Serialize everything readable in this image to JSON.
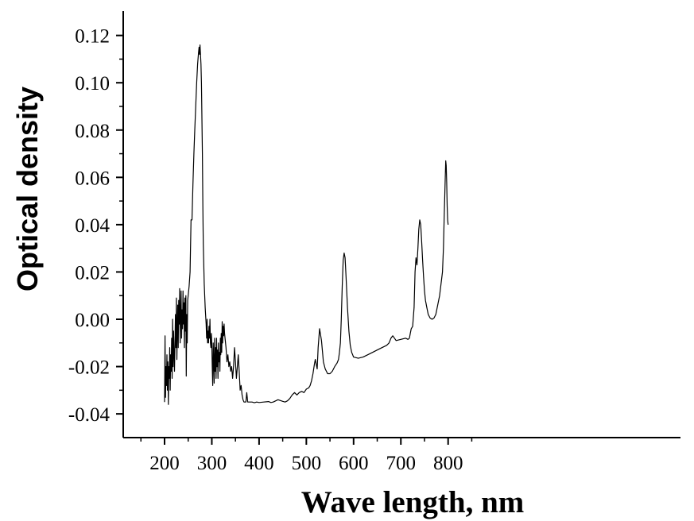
{
  "chart_data": {
    "type": "line",
    "title": "",
    "xlabel": "Wave length, nm",
    "ylabel": "Optical density",
    "xlim": [
      150,
      850
    ],
    "ylim": [
      -0.05,
      0.13
    ],
    "x_ticks": [
      200,
      300,
      400,
      500,
      600,
      700,
      800
    ],
    "x_tick_labels": [
      "200",
      "300",
      "400",
      "500",
      "600",
      "700",
      "800"
    ],
    "y_ticks": [
      -0.04,
      -0.02,
      0.0,
      0.02,
      0.04,
      0.06,
      0.08,
      0.1,
      0.12
    ],
    "y_tick_labels": [
      "-0.04",
      "-0.02",
      "0.00",
      "0.02",
      "0.04",
      "0.06",
      "0.08",
      "0.10",
      "0.12"
    ],
    "grid": false,
    "legend": "none",
    "series": [
      {
        "color": "#000000",
        "x": [
          200,
          201,
          202,
          203,
          204,
          205,
          206,
          207,
          208,
          209,
          210,
          211,
          212,
          213,
          214,
          215,
          216,
          217,
          218,
          219,
          220,
          221,
          222,
          223,
          224,
          225,
          226,
          227,
          228,
          229,
          230,
          231,
          232,
          233,
          234,
          235,
          236,
          237,
          238,
          239,
          240,
          241,
          242,
          243,
          244,
          245,
          246,
          247,
          248,
          249,
          250,
          252,
          254,
          256,
          258,
          260,
          262,
          264,
          266,
          268,
          270,
          272,
          273,
          274,
          275,
          276,
          277,
          278,
          280,
          281,
          282,
          284,
          286,
          288,
          289,
          290,
          291,
          292,
          293,
          294,
          295,
          296,
          297,
          298,
          299,
          300,
          301,
          302,
          303,
          304,
          305,
          306,
          307,
          308,
          309,
          310,
          311,
          312,
          313,
          314,
          315,
          316,
          317,
          318,
          319,
          320,
          321,
          322,
          323,
          324,
          325,
          326,
          327,
          328,
          330,
          332,
          334,
          336,
          338,
          340,
          342,
          344,
          346,
          348,
          350,
          352,
          354,
          356,
          358,
          360,
          362,
          364,
          366,
          368,
          370,
          372,
          374,
          376,
          378,
          380,
          385,
          390,
          395,
          400,
          410,
          420,
          425,
          430,
          440,
          450,
          455,
          460,
          465,
          470,
          475,
          480,
          485,
          490,
          495,
          500,
          505,
          508,
          511,
          514,
          517,
          519,
          521,
          523,
          525,
          528,
          532,
          536,
          540,
          545,
          550,
          555,
          560,
          565,
          568,
          570,
          572,
          574,
          576,
          578,
          580,
          582,
          584,
          587,
          590,
          593,
          596,
          600,
          610,
          620,
          630,
          640,
          650,
          660,
          670,
          675,
          679,
          683,
          690,
          700,
          710,
          715,
          718,
          720,
          722,
          725,
          728,
          730,
          732,
          734,
          736,
          738,
          740,
          742,
          744,
          746,
          748,
          750,
          752,
          755,
          758,
          762,
          766,
          770,
          774,
          778,
          782,
          785,
          788,
          790,
          792,
          794,
          795,
          796,
          797,
          798,
          799,
          800
        ],
        "y": [
          -0.035,
          -0.007,
          -0.033,
          -0.02,
          -0.028,
          -0.015,
          -0.03,
          -0.018,
          -0.036,
          -0.02,
          -0.025,
          -0.012,
          -0.03,
          -0.015,
          -0.022,
          -0.008,
          -0.025,
          0.0,
          -0.02,
          -0.005,
          -0.015,
          -0.022,
          -0.01,
          0.002,
          -0.012,
          0.009,
          -0.017,
          -0.003,
          0.006,
          -0.012,
          0.008,
          -0.002,
          0.013,
          -0.01,
          0.003,
          0.012,
          -0.008,
          0.004,
          -0.004,
          0.012,
          -0.002,
          0.007,
          -0.012,
          0.009,
          -0.005,
          0.01,
          -0.024,
          0.002,
          -0.01,
          0.008,
          0.01,
          0.014,
          0.02,
          0.042,
          0.042,
          0.057,
          0.07,
          0.08,
          0.09,
          0.1,
          0.108,
          0.113,
          0.115,
          0.112,
          0.116,
          0.112,
          0.108,
          0.1,
          0.07,
          0.047,
          0.032,
          0.015,
          0.005,
          -0.002,
          -0.008,
          0.0,
          -0.01,
          -0.005,
          -0.01,
          -0.003,
          -0.008,
          0.0,
          -0.01,
          -0.012,
          -0.006,
          -0.01,
          -0.02,
          -0.028,
          -0.01,
          -0.018,
          -0.027,
          -0.008,
          -0.022,
          -0.012,
          -0.025,
          -0.008,
          -0.02,
          -0.013,
          -0.025,
          -0.01,
          -0.018,
          -0.014,
          -0.022,
          -0.008,
          -0.015,
          -0.006,
          -0.014,
          -0.001,
          -0.01,
          -0.003,
          -0.007,
          -0.002,
          -0.006,
          -0.008,
          -0.012,
          -0.018,
          -0.015,
          -0.02,
          -0.018,
          -0.022,
          -0.02,
          -0.025,
          -0.02,
          -0.012,
          -0.018,
          -0.025,
          -0.02,
          -0.015,
          -0.022,
          -0.03,
          -0.028,
          -0.032,
          -0.034,
          -0.035,
          -0.035,
          -0.035,
          -0.031,
          -0.035,
          -0.035,
          -0.035,
          -0.035,
          -0.0353,
          -0.035,
          -0.0352,
          -0.035,
          -0.0348,
          -0.0352,
          -0.035,
          -0.034,
          -0.0347,
          -0.035,
          -0.0345,
          -0.0335,
          -0.032,
          -0.031,
          -0.032,
          -0.031,
          -0.0305,
          -0.031,
          -0.0295,
          -0.029,
          -0.028,
          -0.026,
          -0.023,
          -0.019,
          -0.017,
          -0.019,
          -0.021,
          -0.012,
          -0.004,
          -0.009,
          -0.018,
          -0.021,
          -0.023,
          -0.023,
          -0.022,
          -0.02,
          -0.0185,
          -0.017,
          -0.014,
          -0.01,
          0.0,
          0.014,
          0.025,
          0.028,
          0.026,
          0.018,
          0.005,
          -0.005,
          -0.011,
          -0.014,
          -0.016,
          -0.0165,
          -0.016,
          -0.015,
          -0.014,
          -0.013,
          -0.012,
          -0.011,
          -0.01,
          -0.008,
          -0.007,
          -0.009,
          -0.0085,
          -0.008,
          -0.0085,
          -0.008,
          -0.006,
          -0.004,
          -0.003,
          0.005,
          0.02,
          0.026,
          0.023,
          0.03,
          0.038,
          0.042,
          0.04,
          0.033,
          0.025,
          0.018,
          0.012,
          0.008,
          0.005,
          0.002,
          0.0005,
          0.0,
          0.0005,
          0.002,
          0.006,
          0.01,
          0.015,
          0.02,
          0.03,
          0.045,
          0.06,
          0.067,
          0.065,
          0.058,
          0.048,
          0.042,
          0.04
        ]
      }
    ]
  }
}
